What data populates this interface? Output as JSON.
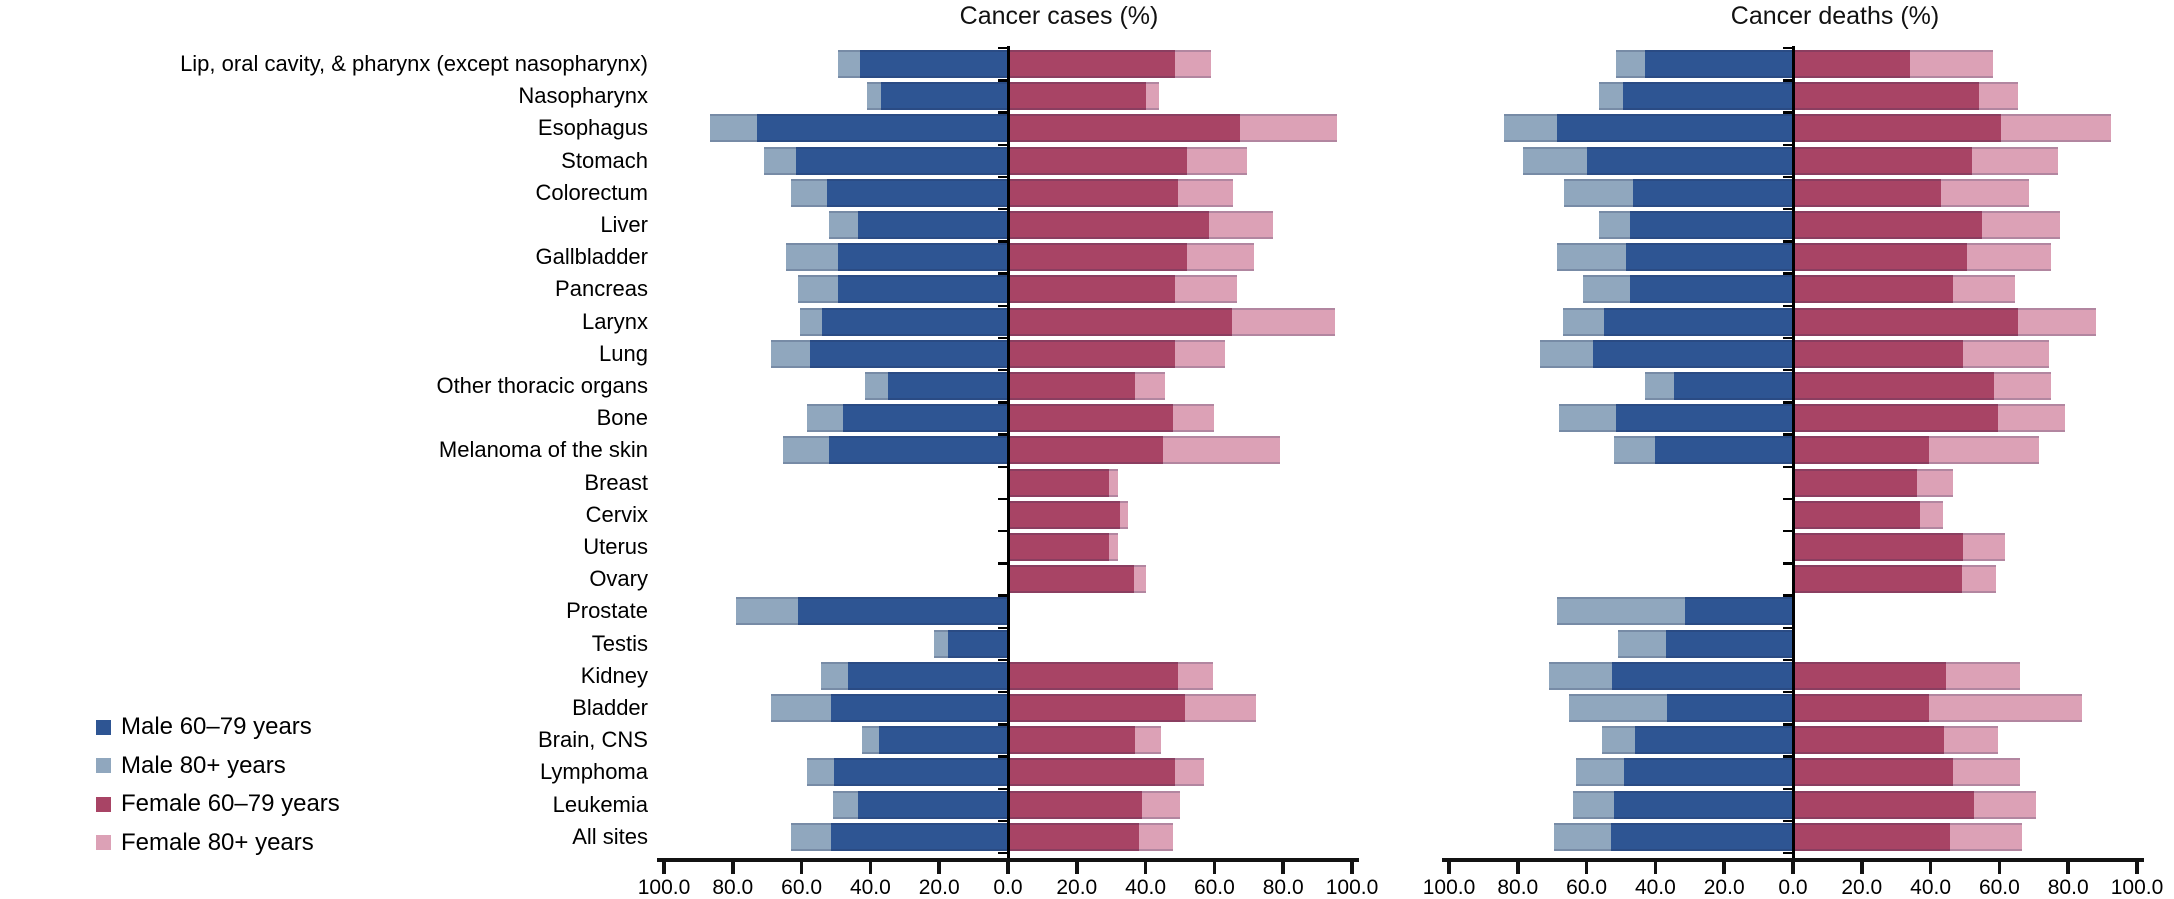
{
  "colors": {
    "male_60_79": "#2e5593",
    "male_80plus": "#90a7be",
    "female_60_79": "#a84465",
    "female_80plus": "#dca1b6",
    "axis": "#131313"
  },
  "legend": [
    {
      "label": "Male 60–79 years",
      "color_key": "male_60_79"
    },
    {
      "label": "Male 80+ years",
      "color_key": "male_80plus"
    },
    {
      "label": "Female 60–79 years",
      "color_key": "female_60_79"
    },
    {
      "label": "Female 80+ years",
      "color_key": "female_80plus"
    }
  ],
  "axis": {
    "tick_labels": [
      "100.0",
      "80.0",
      "60.0",
      "40.0",
      "20.0",
      "0.0",
      "20.0",
      "40.0",
      "60.0",
      "80.0",
      "100.0"
    ]
  },
  "chart_data": {
    "type": "bar",
    "variant": "diverging stacked horizontal bars (males left of center, females right), two panels",
    "unit": "percent of cases/deaths by age group",
    "axis_range_each_side": [
      0,
      100
    ],
    "tick_step": 20,
    "grid": false,
    "legend_position": "bottom-left",
    "categories": [
      "Lip, oral cavity, & pharynx (except nasopharynx)",
      "Nasopharynx",
      "Esophagus",
      "Stomach",
      "Colorectum",
      "Liver",
      "Gallbladder",
      "Pancreas",
      "Larynx",
      "Lung",
      "Other thoracic organs",
      "Bone",
      "Melanoma of the skin",
      "Breast",
      "Cervix",
      "Uterus",
      "Ovary",
      "Prostate",
      "Testis",
      "Kidney",
      "Bladder",
      "Brain, CNS",
      "Lymphoma",
      "Leukemia",
      "All sites"
    ],
    "panels": [
      {
        "title": "Cancer cases (%)",
        "series": [
          {
            "name": "Male 60–79 years",
            "side": "left",
            "color_key": "male_60_79",
            "values": [
              43,
              37,
              73,
              61.5,
              52.5,
              43.5,
              49.5,
              49.5,
              54,
              57.5,
              35,
              48,
              52,
              null,
              null,
              null,
              null,
              61,
              17.5,
              46.5,
              51.5,
              37.5,
              50.5,
              43.5,
              51.5
            ]
          },
          {
            "name": "Male 80+ years",
            "side": "left",
            "color_key": "male_80plus",
            "values": [
              6.5,
              4,
              13.5,
              9.5,
              10.5,
              8.5,
              15,
              11.5,
              6.5,
              11.5,
              6.5,
              10.5,
              13.5,
              null,
              null,
              null,
              null,
              18,
              4,
              8,
              17.5,
              5,
              8,
              7.5,
              11.5
            ]
          },
          {
            "name": "Female 60–79 years",
            "side": "right",
            "color_key": "female_60_79",
            "values": [
              48.5,
              40,
              67.5,
              52,
              49.5,
              58.5,
              52,
              48.5,
              65,
              48.5,
              37,
              48,
              45,
              29.5,
              32.5,
              29.5,
              36.5,
              null,
              null,
              49.5,
              51.5,
              37,
              48.5,
              39,
              38
            ]
          },
          {
            "name": "Female 80+ years",
            "side": "right",
            "color_key": "female_80plus",
            "values": [
              10.5,
              4,
              28,
              17.5,
              16,
              18.5,
              19.5,
              18,
              30,
              14.5,
              8.5,
              12,
              34,
              2.5,
              2.5,
              2.5,
              3.5,
              null,
              null,
              10,
              20.5,
              7.5,
              8.5,
              11,
              10
            ]
          }
        ]
      },
      {
        "title": "Cancer deaths (%)",
        "series": [
          {
            "name": "Male 60–79 years",
            "side": "left",
            "color_key": "male_60_79",
            "values": [
              43,
              49.5,
              68.5,
              60,
              46.5,
              47.5,
              48.5,
              47.5,
              55,
              58,
              34.5,
              51.5,
              40,
              null,
              null,
              null,
              null,
              31.5,
              37,
              52.5,
              36.5,
              46,
              49,
              52,
              53
            ]
          },
          {
            "name": "Male 80+ years",
            "side": "left",
            "color_key": "male_80plus",
            "values": [
              8.5,
              7,
              15.5,
              18.5,
              20,
              9,
              20,
              13.5,
              12,
              15.5,
              8.5,
              16.5,
              12,
              null,
              null,
              null,
              null,
              37,
              14,
              18.5,
              28.5,
              9.5,
              14,
              12,
              16.5
            ]
          },
          {
            "name": "Female 60–79 years",
            "side": "right",
            "color_key": "female_60_79",
            "values": [
              34,
              54,
              60.5,
              52,
              43,
              55,
              50.5,
              46.5,
              65.5,
              49.5,
              58.5,
              59.5,
              39.5,
              36,
              37,
              49.5,
              49,
              null,
              null,
              44.5,
              39.5,
              44,
              46.5,
              52.5,
              45.5
            ]
          },
          {
            "name": "Female 80+ years",
            "side": "right",
            "color_key": "female_80plus",
            "values": [
              24,
              11.5,
              32,
              25,
              25.5,
              22.5,
              24.5,
              18,
              22.5,
              25,
              16.5,
              19.5,
              32,
              10.5,
              6.5,
              12,
              10,
              null,
              null,
              21.5,
              44.5,
              15.5,
              19.5,
              18,
              21
            ]
          }
        ]
      }
    ]
  }
}
